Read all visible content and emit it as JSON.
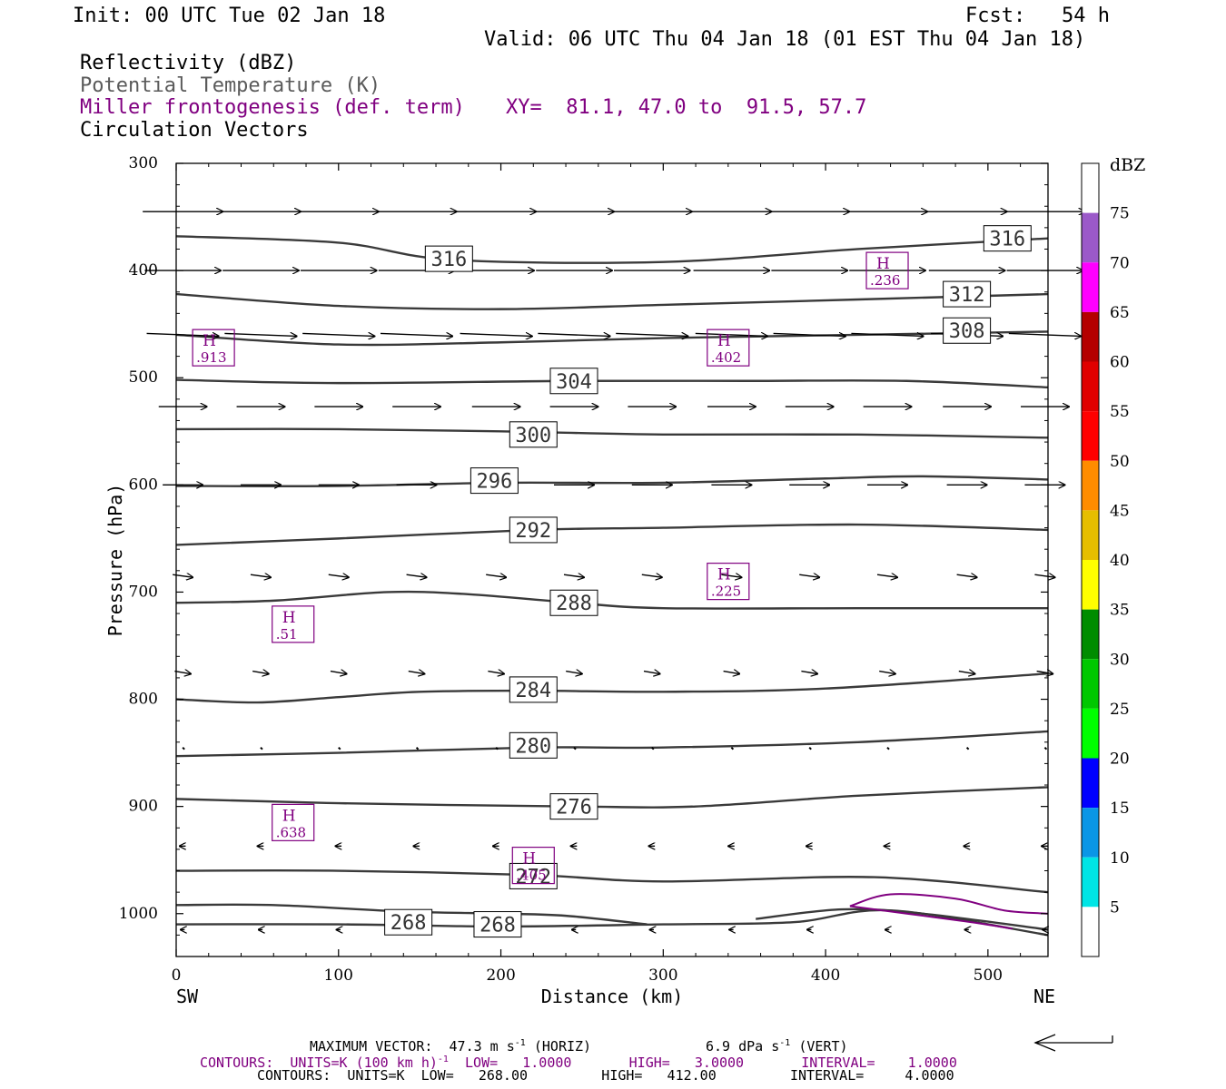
{
  "header": {
    "init": "Init: 00 UTC Tue 02 Jan 18",
    "fcst": "Fcst:   54 h",
    "valid": "Valid: 06 UTC Thu 04 Jan 18 (01 EST Thu 04 Jan 18)",
    "field1": "Reflectivity (dBZ)",
    "field2": "Potential Temperature (K)",
    "field3": "Miller frontogenesis (def. term)",
    "xy": "XY=  81.1, 47.0 to  91.5, 57.7",
    "field4": "Circulation Vectors"
  },
  "footer": {
    "max_vector": "MAXIMUM VECTOR:  47.3 m s",
    "max_vector_exp": "-1",
    "max_vector_horiz": " (HORIZ)",
    "max_vector_vert": "6.9 dPa s",
    "max_vector_vert_exp": "-1",
    "max_vector_vert_tail": " (VERT)",
    "contours_front_a": "CONTOURS:  UNITS=K (100 km h)",
    "contours_front_exp": "-1",
    "contours_front_b": "  LOW=   1.0000       HIGH=   3.0000       INTERVAL=    1.0000",
    "contours_theta": "CONTOURS:  UNITS=K  LOW=   268.00         HIGH=   412.00         INTERVAL=     4.0000"
  },
  "colorbar": {
    "unit": "dBZ",
    "labels": [
      "5",
      "10",
      "15",
      "20",
      "25",
      "30",
      "35",
      "40",
      "45",
      "50",
      "55",
      "60",
      "65",
      "70",
      "75"
    ],
    "colors": [
      "#ffffff",
      "#00e5e5",
      "#0a96e6",
      "#0000ff",
      "#00ff00",
      "#00c800",
      "#008c00",
      "#ffff00",
      "#e6be00",
      "#ff8c00",
      "#ff0000",
      "#e00000",
      "#b40000",
      "#ff00ff",
      "#9b59c9"
    ]
  },
  "chart_data": {
    "type": "line",
    "xlabel": "Distance (km)",
    "ylabel": "Pressure (hPa)",
    "xlim": [
      0,
      537
    ],
    "ylim": [
      300,
      1040
    ],
    "x_ticks": [
      "0",
      "100",
      "200",
      "300",
      "400",
      "500"
    ],
    "y_ticks": [
      "300",
      "400",
      "500",
      "600",
      "700",
      "800",
      "900",
      "1000"
    ],
    "x_end_labels": {
      "left": "SW",
      "right": "NE"
    },
    "theta_contours": [
      {
        "label": "316",
        "points": [
          [
            0,
            368
          ],
          [
            100,
            374
          ],
          [
            170,
            390
          ],
          [
            300,
            392
          ],
          [
            420,
            380
          ],
          [
            537,
            370
          ]
        ],
        "labels_at": [
          [
            168,
            389
          ],
          [
            512,
            370
          ]
        ]
      },
      {
        "label": "312",
        "points": [
          [
            0,
            422
          ],
          [
            100,
            433
          ],
          [
            200,
            436
          ],
          [
            300,
            432
          ],
          [
            420,
            427
          ],
          [
            537,
            422
          ]
        ],
        "labels_at": [
          [
            487,
            422
          ]
        ]
      },
      {
        "label": "308",
        "points": [
          [
            0,
            460
          ],
          [
            100,
            469
          ],
          [
            200,
            467
          ],
          [
            300,
            463
          ],
          [
            420,
            460
          ],
          [
            537,
            457
          ]
        ],
        "labels_at": [
          [
            487,
            456
          ]
        ]
      },
      {
        "label": "304",
        "points": [
          [
            0,
            502
          ],
          [
            100,
            505
          ],
          [
            245,
            503
          ],
          [
            350,
            503
          ],
          [
            450,
            503
          ],
          [
            537,
            509
          ]
        ],
        "labels_at": [
          [
            245,
            503
          ]
        ]
      },
      {
        "label": "300",
        "points": [
          [
            0,
            548
          ],
          [
            100,
            548
          ],
          [
            200,
            550
          ],
          [
            300,
            553
          ],
          [
            420,
            553
          ],
          [
            537,
            556
          ]
        ],
        "labels_at": [
          [
            220,
            553
          ]
        ]
      },
      {
        "label": "296",
        "points": [
          [
            0,
            601
          ],
          [
            100,
            601
          ],
          [
            200,
            598
          ],
          [
            300,
            598
          ],
          [
            400,
            594
          ],
          [
            460,
            592
          ],
          [
            537,
            595
          ]
        ],
        "labels_at": [
          [
            196,
            596
          ]
        ]
      },
      {
        "label": "292",
        "points": [
          [
            0,
            656
          ],
          [
            100,
            650
          ],
          [
            220,
            642
          ],
          [
            300,
            640
          ],
          [
            420,
            637
          ],
          [
            537,
            642
          ]
        ],
        "labels_at": [
          [
            220,
            642
          ]
        ]
      },
      {
        "label": "288",
        "points": [
          [
            0,
            710
          ],
          [
            60,
            708
          ],
          [
            130,
            700
          ],
          [
            180,
            702
          ],
          [
            245,
            710
          ],
          [
            300,
            715
          ],
          [
            420,
            715
          ],
          [
            537,
            715
          ]
        ],
        "labels_at": [
          [
            245,
            710
          ]
        ]
      },
      {
        "label": "284",
        "points": [
          [
            0,
            800
          ],
          [
            50,
            803
          ],
          [
            100,
            798
          ],
          [
            150,
            793
          ],
          [
            220,
            792
          ],
          [
            300,
            793
          ],
          [
            400,
            790
          ],
          [
            537,
            776
          ]
        ],
        "labels_at": [
          [
            220,
            791
          ]
        ]
      },
      {
        "label": "280",
        "points": [
          [
            0,
            853
          ],
          [
            100,
            850
          ],
          [
            220,
            845
          ],
          [
            300,
            845
          ],
          [
            420,
            840
          ],
          [
            537,
            830
          ]
        ],
        "labels_at": [
          [
            220,
            843
          ]
        ]
      },
      {
        "label": "276",
        "points": [
          [
            0,
            893
          ],
          [
            100,
            897
          ],
          [
            245,
            900
          ],
          [
            320,
            900
          ],
          [
            420,
            890
          ],
          [
            537,
            882
          ]
        ],
        "labels_at": [
          [
            245,
            900
          ]
        ]
      },
      {
        "label": "272",
        "points": [
          [
            0,
            960
          ],
          [
            100,
            960
          ],
          [
            220,
            964
          ],
          [
            300,
            970
          ],
          [
            430,
            966
          ],
          [
            537,
            980
          ]
        ],
        "labels_at": [
          [
            220,
            965
          ]
        ]
      },
      {
        "label": "268",
        "points": [
          [
            0,
            1010
          ],
          [
            100,
            1010
          ],
          [
            200,
            1012
          ],
          [
            300,
            1010
          ],
          [
            380,
            1008
          ],
          [
            440,
            997
          ],
          [
            537,
            1020
          ]
        ],
        "labels_at": [
          [
            143,
            1008
          ],
          [
            198,
            1010
          ]
        ]
      },
      {
        "label": "",
        "points": [
          [
            0,
            992
          ],
          [
            60,
            992
          ],
          [
            140,
            998
          ],
          [
            200,
            1000
          ],
          [
            240,
            1002
          ],
          [
            290,
            1010
          ]
        ],
        "labels_at": []
      },
      {
        "label": "",
        "points": [
          [
            357,
            1005
          ],
          [
            410,
            996
          ],
          [
            460,
            1000
          ],
          [
            537,
            1015
          ]
        ],
        "labels_at": []
      }
    ],
    "frontogenesis_contours": [
      {
        "points": [
          [
            415,
            993
          ],
          [
            440,
            982
          ],
          [
            480,
            986
          ],
          [
            510,
            997
          ],
          [
            537,
            1000
          ]
        ]
      },
      {
        "points": [
          [
            415,
            993
          ],
          [
            450,
            1000
          ],
          [
            490,
            1008
          ],
          [
            515,
            1014
          ]
        ]
      }
    ],
    "frontogenesis_highs": [
      {
        "x": 23,
        "p": 472,
        "value": ".913"
      },
      {
        "x": 340,
        "p": 472,
        "value": ".402"
      },
      {
        "x": 438,
        "p": 400,
        "value": ".236"
      },
      {
        "x": 340,
        "p": 690,
        "value": ".225"
      },
      {
        "x": 72,
        "p": 730,
        "value": ".51"
      },
      {
        "x": 72,
        "p": 915,
        "value": ".638"
      },
      {
        "x": 220,
        "p": 955,
        "value": ".405"
      }
    ],
    "vector_rows": [
      {
        "p": 345,
        "u": 40,
        "w": 0
      },
      {
        "p": 400,
        "u": 38,
        "w": 0
      },
      {
        "p": 460,
        "u": 36,
        "w": 1
      },
      {
        "p": 527,
        "u": 24,
        "w": 0
      },
      {
        "p": 600,
        "u": 20,
        "w": 0
      },
      {
        "p": 685,
        "u": 10,
        "w": 1
      },
      {
        "p": 775,
        "u": 8,
        "w": 1
      },
      {
        "p": 845,
        "u": 0.5,
        "w": 0
      },
      {
        "p": 937,
        "u": -3,
        "w": 0
      },
      {
        "p": 1015,
        "u": -2,
        "w": 0
      }
    ],
    "vector_x": [
      4,
      52,
      100,
      148,
      197,
      245,
      293,
      342,
      390,
      438,
      487,
      535
    ],
    "max_vector_arrow": {
      "direction": "left"
    }
  }
}
